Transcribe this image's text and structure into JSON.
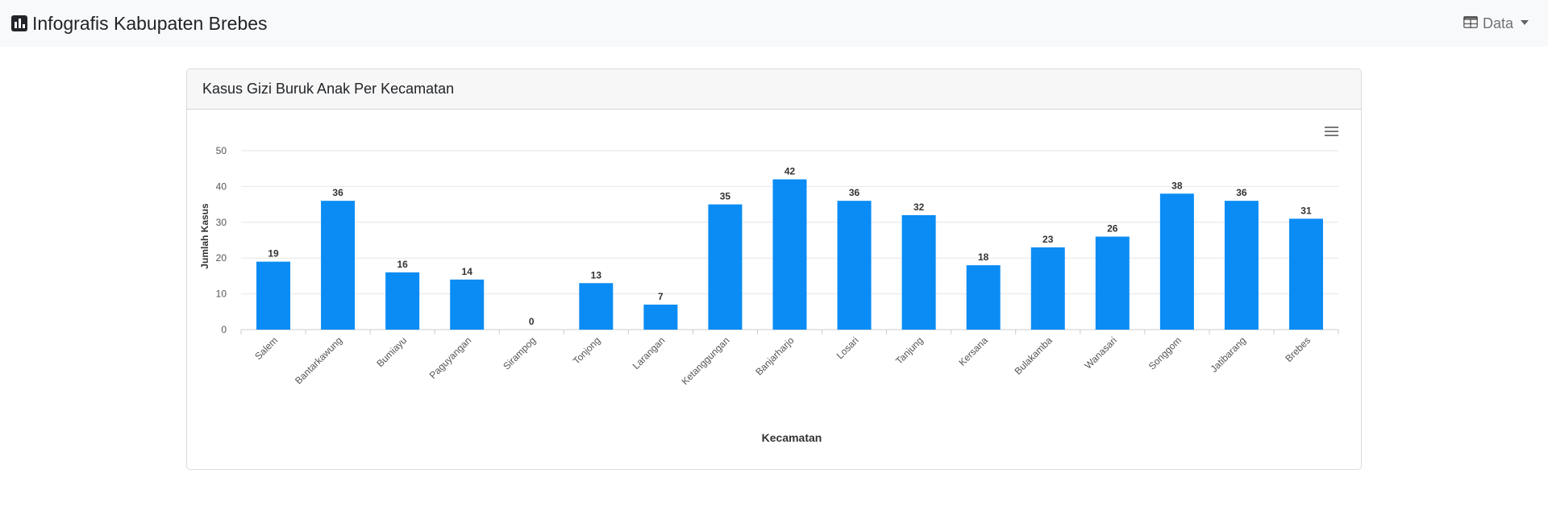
{
  "navbar": {
    "brand_title": "Infografis Kabupaten Brebes",
    "brand_icon": "bar-chart-icon",
    "menu_label": "Data",
    "menu_icon": "table-icon"
  },
  "card": {
    "header_title": "Kasus Gizi Buruk Anak Per Kecamatan"
  },
  "colors": {
    "bar": "#0a8cf4",
    "navbar_bg": "#f8f9fa",
    "grid": "#e6e6e6"
  },
  "chart_data": {
    "type": "bar",
    "title": "",
    "xlabel": "Kecamatan",
    "ylabel": "Jumlah Kasus",
    "ylim": [
      0,
      50
    ],
    "yticks": [
      0,
      10,
      20,
      30,
      40,
      50
    ],
    "grid": true,
    "legend": "none",
    "data_labels": true,
    "categories": [
      "Salem",
      "Bantarkawung",
      "Bumiayu",
      "Paguyangan",
      "Sirampog",
      "Tonjong",
      "Larangan",
      "Ketanggungan",
      "Banjarharjo",
      "Losari",
      "Tanjung",
      "Kersana",
      "Bulakamba",
      "Wanasari",
      "Songgom",
      "Jatibarang",
      "Brebes"
    ],
    "values": [
      19,
      36,
      16,
      14,
      0,
      13,
      7,
      35,
      42,
      36,
      32,
      18,
      23,
      26,
      38,
      36,
      31
    ]
  }
}
